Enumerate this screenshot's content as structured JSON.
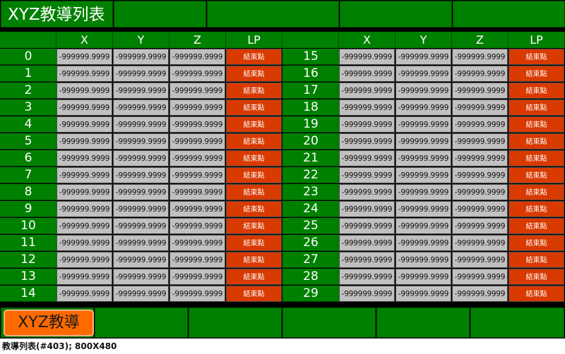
{
  "title": "XYZ教導列表",
  "columns": [
    "X",
    "Y",
    "Z",
    "LP"
  ],
  "row_value": "-999999.9999",
  "lp_label": "結束點",
  "left_indices": [
    "0",
    "1",
    "2",
    "3",
    "4",
    "5",
    "6",
    "7",
    "8",
    "9",
    "10",
    "11",
    "12",
    "13",
    "14"
  ],
  "right_indices": [
    "15",
    "16",
    "17",
    "18",
    "19",
    "20",
    "21",
    "22",
    "23",
    "24",
    "25",
    "26",
    "27",
    "28",
    "29"
  ],
  "bottom_button": "XYZ教導",
  "caption": "教導列表(#403); 800X480",
  "colors": {
    "panel_green": "#008000",
    "cell_gray": "#c0c0c0",
    "lp_red": "#d83a00",
    "button_orange": "#ff6a00"
  }
}
